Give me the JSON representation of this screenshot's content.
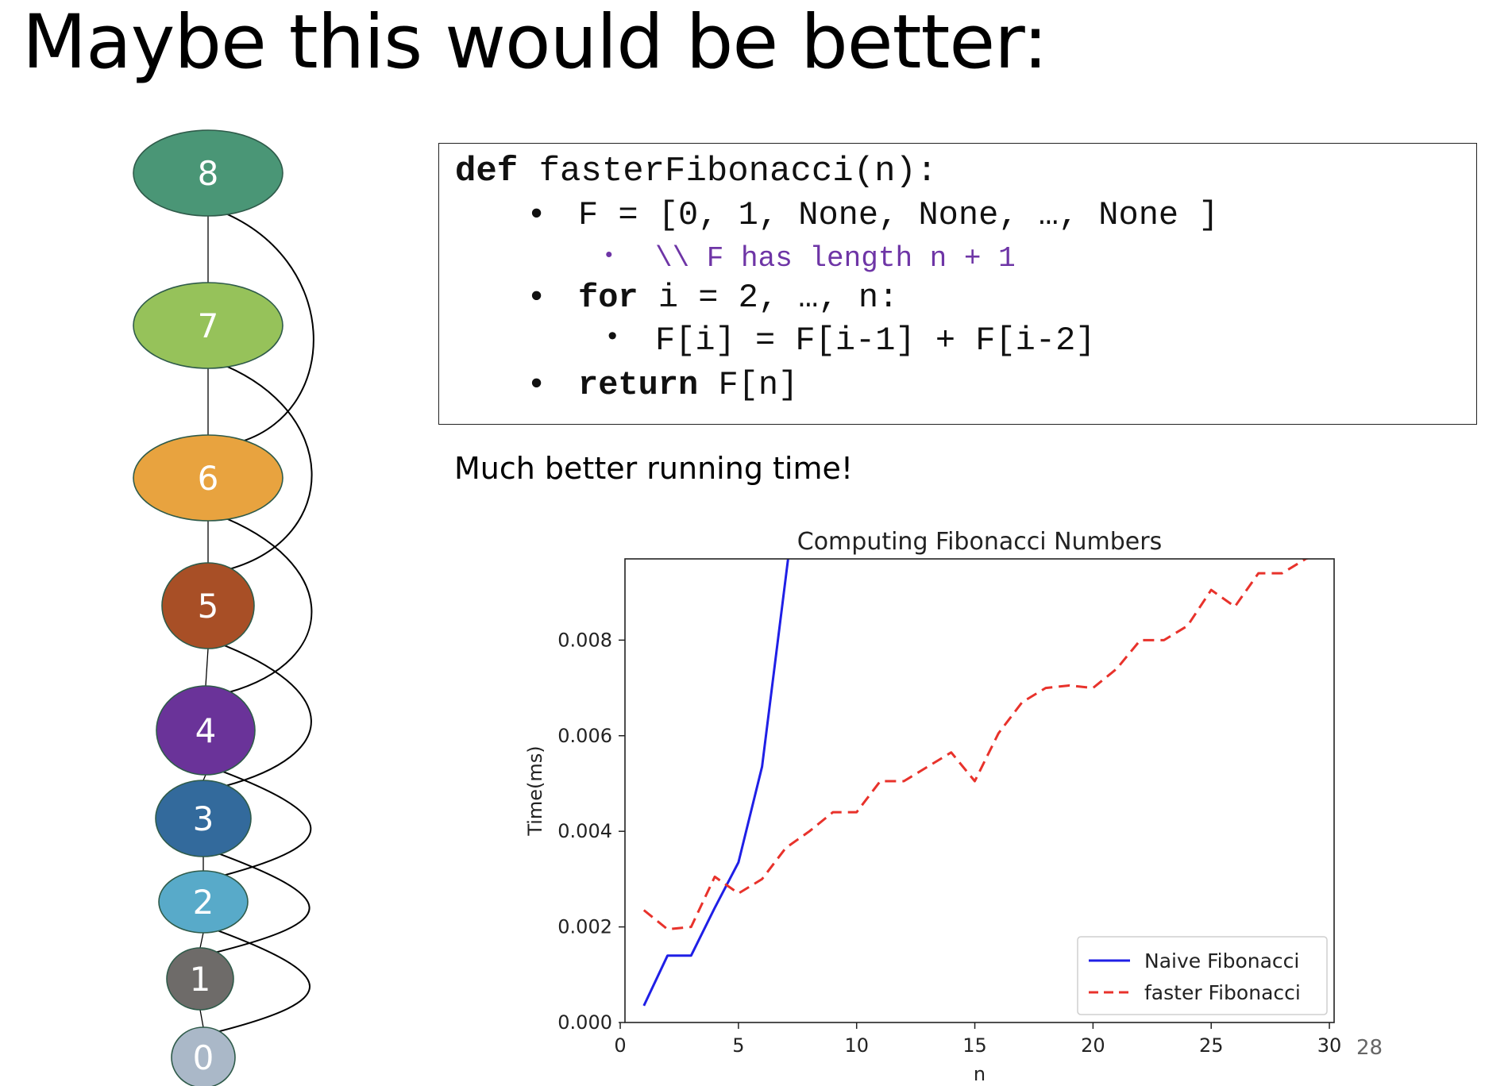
{
  "slide": {
    "title": "Maybe this would be better:",
    "caption": "Much better running time!",
    "page_number": "28"
  },
  "graph": {
    "nodes": [
      {
        "label": "8",
        "color": "#4a9676"
      },
      {
        "label": "7",
        "color": "#96c25a"
      },
      {
        "label": "6",
        "color": "#e8a33f"
      },
      {
        "label": "5",
        "color": "#a84f26"
      },
      {
        "label": "4",
        "color": "#6a3399"
      },
      {
        "label": "3",
        "color": "#336a9c"
      },
      {
        "label": "2",
        "color": "#58aac9"
      },
      {
        "label": "1",
        "color": "#6e6b69"
      },
      {
        "label": "0",
        "color": "#aab8c8"
      }
    ],
    "edges": [
      [
        "8",
        "7"
      ],
      [
        "7",
        "6"
      ],
      [
        "6",
        "5"
      ],
      [
        "5",
        "4"
      ],
      [
        "4",
        "3"
      ],
      [
        "3",
        "2"
      ],
      [
        "2",
        "1"
      ],
      [
        "1",
        "0"
      ],
      [
        "8",
        "6"
      ],
      [
        "7",
        "5"
      ],
      [
        "6",
        "4"
      ],
      [
        "5",
        "3"
      ],
      [
        "4",
        "2"
      ],
      [
        "3",
        "1"
      ],
      [
        "2",
        "0"
      ]
    ]
  },
  "code": {
    "def_keyword": "def",
    "def_rest": " fasterFibonacci(n):",
    "line1": "F = [0, 1, None, None, …, None ]",
    "comment": "\\\\ F has length n + 1",
    "for_keyword": "for",
    "for_rest": " i = 2, …, n:",
    "loop_body": "F[i] = F[i-1] + F[i-2]",
    "return_keyword": "return",
    "return_rest": " F[n]",
    "bullet": "•"
  },
  "chart_data": {
    "type": "line",
    "title": "Computing Fibonacci Numbers",
    "xlabel": "n",
    "ylabel": "Time(ms)",
    "xlim": [
      0.2,
      30.2
    ],
    "ylim": [
      0.0,
      0.0097
    ],
    "xticks": [
      0,
      5,
      10,
      15,
      20,
      25,
      30
    ],
    "yticks": [
      0.0,
      0.002,
      0.004,
      0.006,
      0.008
    ],
    "ytick_labels": [
      "0.000",
      "0.002",
      "0.004",
      "0.006",
      "0.008"
    ],
    "legend_position": "lower-right",
    "grid": false,
    "series": [
      {
        "name": "Naive Fibonacci",
        "color": "#1f1fe6",
        "style": "solid",
        "x": [
          1,
          2,
          3,
          4,
          5,
          6,
          7.1
        ],
        "y": [
          0.00035,
          0.0014,
          0.0014,
          0.0024,
          0.00335,
          0.00535,
          0.0097
        ]
      },
      {
        "name": "faster Fibonacci",
        "color": "#e8322b",
        "style": "dashed",
        "x": [
          1,
          2,
          3,
          4,
          5,
          6,
          7,
          8,
          9,
          10,
          11,
          12,
          13,
          14,
          15,
          16,
          17,
          18,
          19,
          20,
          21,
          22,
          23,
          24,
          25,
          26,
          27,
          28,
          29,
          30
        ],
        "y": [
          0.00235,
          0.00195,
          0.002,
          0.00305,
          0.0027,
          0.003,
          0.00365,
          0.004,
          0.0044,
          0.0044,
          0.00505,
          0.00505,
          0.00535,
          0.00565,
          0.00505,
          0.00605,
          0.0067,
          0.007,
          0.00705,
          0.007,
          0.0074,
          0.008,
          0.008,
          0.0083,
          0.00905,
          0.0087,
          0.0094,
          0.0094,
          0.0097,
          0.00985
        ]
      }
    ]
  }
}
